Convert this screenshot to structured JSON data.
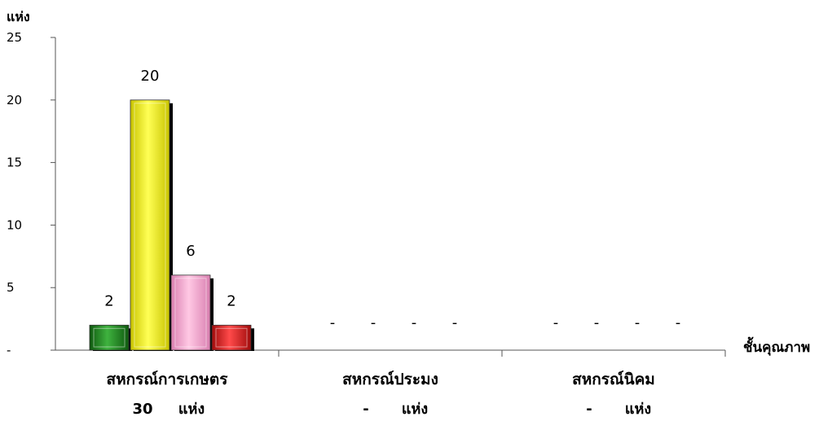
{
  "chart_data": {
    "type": "bar",
    "ylabel": "แห่ง",
    "xlabel": "ชั้นคุณภาพ",
    "ylim": [
      0,
      25
    ],
    "yticks": [
      {
        "value": 0,
        "label": "-"
      },
      {
        "value": 5,
        "label": "5"
      },
      {
        "value": 10,
        "label": "10"
      },
      {
        "value": 15,
        "label": "15"
      },
      {
        "value": 20,
        "label": "20"
      },
      {
        "value": 25,
        "label": "25"
      }
    ],
    "categories": [
      {
        "label": "สหกรณ์การเกษตร",
        "count": "30",
        "unit": "แห่ง",
        "values": [
          2,
          20,
          6,
          2
        ],
        "labels": [
          "2",
          "20",
          "6",
          "2"
        ]
      },
      {
        "label": "สหกรณ์ประมง",
        "count": "-",
        "unit": "แห่ง",
        "values": [
          0,
          0,
          0,
          0
        ],
        "labels": [
          "-",
          "-",
          "-",
          "-"
        ]
      },
      {
        "label": "สหกรณ์นิคม",
        "count": "-",
        "unit": "แห่ง",
        "values": [
          0,
          0,
          0,
          0
        ],
        "labels": [
          "-",
          "-",
          "-",
          "-"
        ]
      }
    ],
    "series_colors": [
      "#1f8a1f",
      "#f5f21a",
      "#f4a7cf",
      "#e51616"
    ],
    "grid": false,
    "legend": "none"
  }
}
